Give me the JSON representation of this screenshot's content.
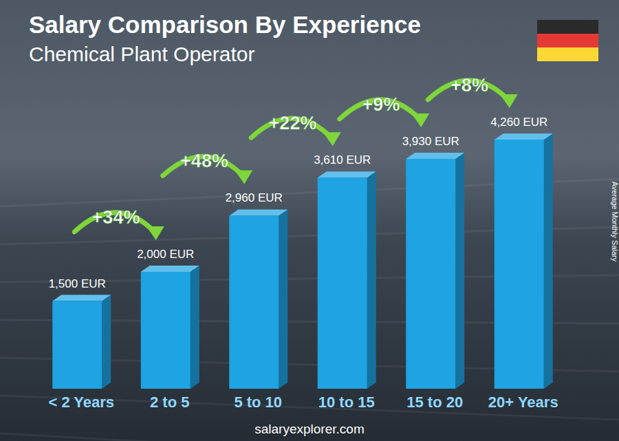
{
  "chart_data": {
    "type": "bar",
    "title": "Salary Comparison By Experience",
    "subtitle": "Chemical Plant Operator",
    "y_label": "Average Monthly Salary",
    "source": "salaryexplorer.com",
    "categories": [
      "< 2 Years",
      "2 to 5",
      "5 to 10",
      "10 to 15",
      "15 to 20",
      "20+ Years"
    ],
    "values": [
      1500,
      2000,
      2960,
      3610,
      3930,
      4260
    ],
    "value_labels": [
      "1,500 EUR",
      "2,000 EUR",
      "2,960 EUR",
      "3,610 EUR",
      "3,930 EUR",
      "4,260 EUR"
    ],
    "annotations": [
      "+34%",
      "+48%",
      "+22%",
      "+9%",
      "+8%"
    ],
    "color": "#1ea3e3",
    "ylim": [
      0,
      5000
    ],
    "data_labels": true,
    "tick_labels": "x",
    "grid": false
  }
}
